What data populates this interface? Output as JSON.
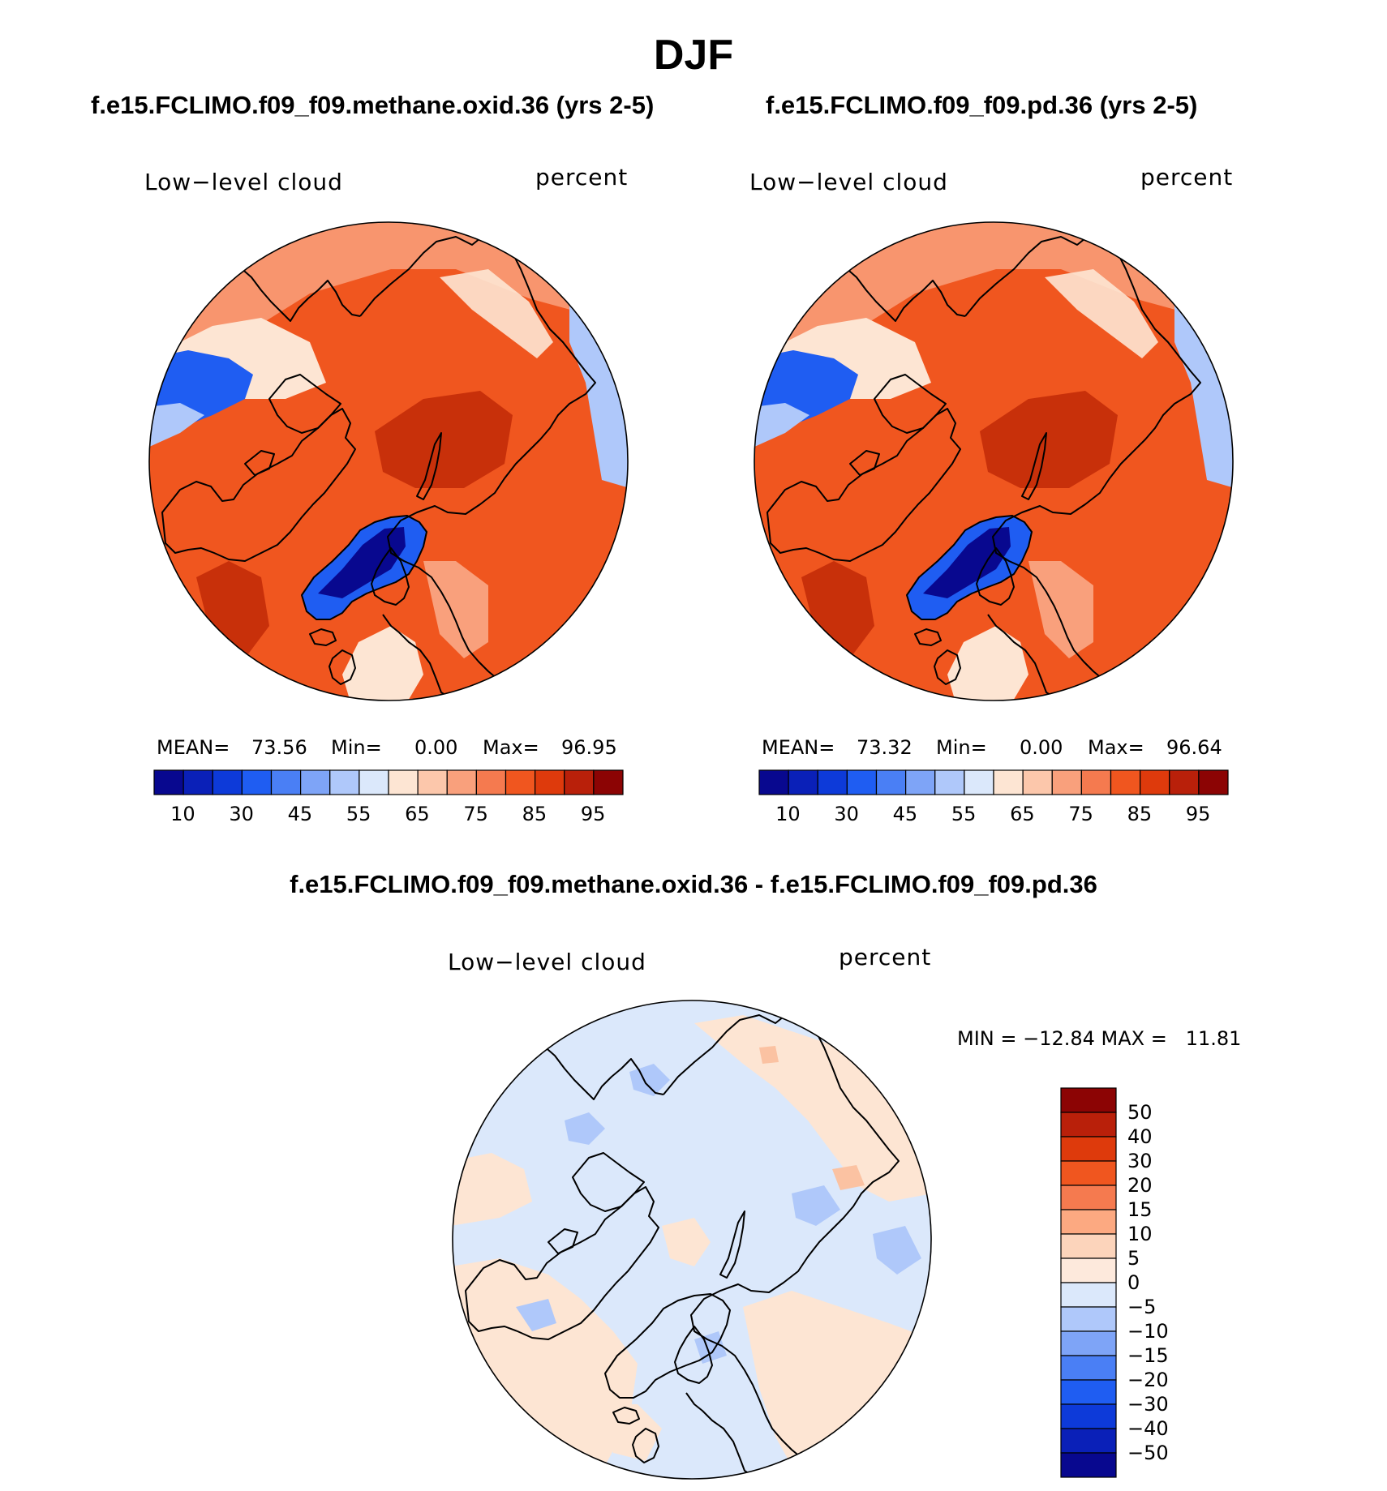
{
  "figure": {
    "season_title": "DJF",
    "diff_title": "f.e15.FCLIMO.f09_f09.methane.oxid.36 - f.e15.FCLIMO.f09_f09.pd.36"
  },
  "panels": [
    {
      "case_title": "f.e15.FCLIMO.f09_f09.methane.oxid.36 (yrs 2-5)",
      "variable": "Low−level cloud",
      "units": "percent",
      "mean_label": "MEAN=",
      "mean": "73.56",
      "min_label": "Min=",
      "min": "0.00",
      "max_label": "Max=",
      "max": "96.95"
    },
    {
      "case_title": "f.e15.FCLIMO.f09_f09.pd.36 (yrs 2-5)",
      "variable": "Low−level cloud",
      "units": "percent",
      "mean_label": "MEAN=",
      "mean": "73.32",
      "min_label": "Min=",
      "min": "0.00",
      "max_label": "Max=",
      "max": "96.64"
    }
  ],
  "diff_panel": {
    "variable": "Low−level cloud",
    "units": "percent",
    "range_text": "MIN = −12.84 MAX =   11.81"
  },
  "chart_data": [
    {
      "type": "heatmap",
      "projection": "north polar stereographic",
      "title": "f.e15.FCLIMO.f09_f09.methane.oxid.36 (yrs 2-5)",
      "variable": "Low-level cloud",
      "units": "percent",
      "mean": 73.56,
      "min": 0.0,
      "max": 96.95,
      "colorbar_levels": [
        5,
        10,
        20,
        30,
        40,
        45,
        50,
        55,
        60,
        65,
        70,
        75,
        80,
        85,
        90,
        95
      ],
      "colorbar_tick_labels": [
        "10",
        "30",
        "45",
        "55",
        "65",
        "75",
        "85",
        "95"
      ]
    },
    {
      "type": "heatmap",
      "projection": "north polar stereographic",
      "title": "f.e15.FCLIMO.f09_f09.pd.36 (yrs 2-5)",
      "variable": "Low-level cloud",
      "units": "percent",
      "mean": 73.32,
      "min": 0.0,
      "max": 96.64,
      "colorbar_levels": [
        5,
        10,
        20,
        30,
        40,
        45,
        50,
        55,
        60,
        65,
        70,
        75,
        80,
        85,
        90,
        95
      ],
      "colorbar_tick_labels": [
        "10",
        "30",
        "45",
        "55",
        "65",
        "75",
        "85",
        "95"
      ]
    },
    {
      "type": "heatmap",
      "projection": "north polar stereographic",
      "title": "f.e15.FCLIMO.f09_f09.methane.oxid.36 - f.e15.FCLIMO.f09_f09.pd.36",
      "variable": "Low-level cloud",
      "units": "percent",
      "min": -12.84,
      "max": 11.81,
      "colorbar_levels": [
        50,
        40,
        30,
        20,
        15,
        10,
        5,
        0,
        -5,
        -10,
        -15,
        -20,
        -30,
        -40,
        -50
      ],
      "colorbar_tick_labels": [
        "50",
        "40",
        "30",
        "20",
        "15",
        "10",
        "5",
        "0",
        "−5",
        "−10",
        "−15",
        "−20",
        "−30",
        "−40",
        "−50"
      ]
    }
  ],
  "palettes": {
    "absolute": [
      "#08088f",
      "#0a20b8",
      "#0d3ad9",
      "#1f5df2",
      "#4a7ff5",
      "#7ea4f7",
      "#afc8fa",
      "#dbe8fb",
      "#fde5d3",
      "#fcc7ab",
      "#f9a07c",
      "#f57a4f",
      "#f0561f",
      "#de3a0c",
      "#b9200a",
      "#8c0404"
    ],
    "difference": [
      "#8c0404",
      "#b9200a",
      "#de3a0c",
      "#f0561f",
      "#f57a4f",
      "#fca981",
      "#fcd4bb",
      "#fde9dc",
      "#dbe8fb",
      "#afc8fa",
      "#7ea4f7",
      "#4a7ff5",
      "#1f5df2",
      "#0d3ad9",
      "#0a20b8",
      "#08088f"
    ],
    "map": {
      "ocean_red": "#f0561f",
      "dark_red": "#c8300a",
      "light_red": "#f9a07c",
      "pale": "#fde5d3",
      "blue": "#1f5df2",
      "dark_blue": "#08088f",
      "light_blue": "#afc8fa",
      "diff_pale_blue": "#dbe8fb",
      "diff_pale_red": "#fde5d3",
      "diff_blue": "#9db9f6",
      "diff_red": "#fbc2a2",
      "coast": "#000000"
    }
  }
}
